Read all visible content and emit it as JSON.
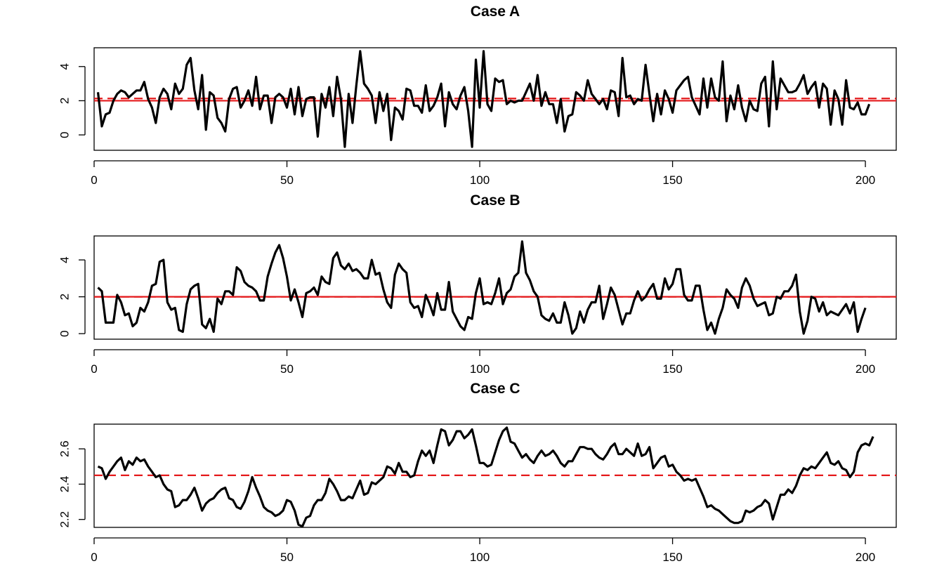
{
  "chart_data": [
    {
      "type": "line",
      "title": "Case A",
      "xlabel": "",
      "ylabel": "",
      "xlim": [
        0,
        208
      ],
      "ylim": [
        -0.9,
        5.1
      ],
      "x_ticks": [
        0,
        50,
        100,
        150,
        200
      ],
      "y_ticks": [
        0,
        2,
        4
      ],
      "y_tick_labels": [
        "0",
        "2",
        "4"
      ],
      "grid": false,
      "ref_lines": [
        {
          "style": "solid",
          "color": "#e41a1c",
          "y": 2.0
        },
        {
          "style": "dashed",
          "color": "#e41a1c",
          "y": 2.13
        }
      ],
      "x_start": 1,
      "values": [
        2.5,
        0.5,
        1.2,
        1.3,
        2.0,
        2.4,
        2.6,
        2.5,
        2.2,
        2.4,
        2.6,
        2.6,
        3.1,
        2.1,
        1.6,
        0.7,
        2.2,
        2.7,
        2.4,
        1.5,
        3.0,
        2.4,
        2.7,
        4.1,
        4.5,
        2.6,
        1.5,
        3.5,
        0.3,
        2.5,
        2.3,
        1.0,
        0.7,
        0.2,
        2.1,
        2.7,
        2.8,
        1.6,
        2.0,
        2.6,
        1.7,
        3.4,
        1.5,
        2.3,
        2.3,
        0.7,
        2.2,
        2.4,
        2.2,
        1.6,
        2.7,
        1.2,
        2.8,
        1.1,
        2.1,
        2.2,
        2.2,
        -0.1,
        2.4,
        1.6,
        2.8,
        1.1,
        3.4,
        2.1,
        -0.7,
        2.4,
        0.7,
        2.9,
        4.9,
        3.0,
        2.7,
        2.3,
        0.7,
        2.5,
        1.4,
        2.4,
        -0.3,
        1.6,
        1.4,
        0.9,
        2.7,
        2.6,
        1.7,
        1.7,
        1.3,
        2.9,
        1.4,
        1.7,
        2.2,
        3.0,
        0.5,
        2.5,
        1.8,
        1.5,
        2.3,
        2.8,
        1.4,
        -0.7,
        4.4,
        1.6,
        4.9,
        1.8,
        1.4,
        3.3,
        3.1,
        3.2,
        1.8,
        2.0,
        1.9,
        2.0,
        2.0,
        2.5,
        3.0,
        2.0,
        3.5,
        1.7,
        2.5,
        1.8,
        1.8,
        0.7,
        2.1,
        0.2,
        1.1,
        1.2,
        2.5,
        2.3,
        2.0,
        3.2,
        2.4,
        2.1,
        1.8,
        2.1,
        1.5,
        2.6,
        2.5,
        1.1,
        4.5,
        2.2,
        2.3,
        1.8,
        2.1,
        2.0,
        4.1,
        2.4,
        0.8,
        2.4,
        1.2,
        2.6,
        2.1,
        1.3,
        2.6,
        2.9,
        3.2,
        3.4,
        2.2,
        1.7,
        1.2,
        3.3,
        1.6,
        3.3,
        2.2,
        2.0,
        4.3,
        0.8,
        2.3,
        1.5,
        2.9,
        1.6,
        0.8,
        2.0,
        1.5,
        1.4,
        3.0,
        3.4,
        0.5,
        4.3,
        1.5,
        3.3,
        2.9,
        2.5,
        2.5,
        2.6,
        3.0,
        3.5,
        2.4,
        2.8,
        3.1,
        1.6,
        3.0,
        2.7,
        0.6,
        2.6,
        2.1,
        0.6,
        3.2,
        1.6,
        1.5,
        1.9,
        1.2,
        1.2,
        1.8
      ]
    },
    {
      "type": "line",
      "title": "Case B",
      "xlabel": "",
      "ylabel": "",
      "xlim": [
        0,
        208
      ],
      "ylim": [
        -0.3,
        5.3
      ],
      "x_ticks": [
        0,
        50,
        100,
        150,
        200
      ],
      "y_ticks": [
        0,
        2,
        4
      ],
      "y_tick_labels": [
        "0",
        "2",
        "4"
      ],
      "grid": false,
      "ref_lines": [
        {
          "style": "solid",
          "color": "#e41a1c",
          "y": 2.0
        },
        {
          "style": "dashed",
          "color": "#e41a1c",
          "y": 2.0
        }
      ],
      "x_start": 1,
      "values": [
        2.5,
        2.3,
        0.6,
        0.6,
        0.6,
        2.1,
        1.7,
        1.0,
        1.1,
        0.4,
        0.6,
        1.4,
        1.2,
        1.7,
        2.6,
        2.7,
        3.9,
        4.0,
        1.7,
        1.3,
        1.4,
        0.2,
        0.1,
        1.6,
        2.4,
        2.6,
        2.7,
        0.5,
        0.3,
        0.8,
        0.1,
        1.9,
        1.6,
        2.3,
        2.3,
        2.1,
        3.6,
        3.4,
        2.8,
        2.6,
        2.5,
        2.3,
        1.8,
        1.8,
        3.1,
        3.8,
        4.4,
        4.8,
        4.1,
        3.1,
        1.8,
        2.4,
        1.7,
        0.9,
        2.2,
        2.3,
        2.5,
        2.1,
        3.1,
        2.8,
        2.7,
        4.1,
        4.4,
        3.7,
        3.5,
        3.8,
        3.4,
        3.5,
        3.3,
        3.0,
        3.0,
        4.0,
        3.2,
        3.3,
        2.4,
        1.7,
        1.4,
        3.2,
        3.8,
        3.5,
        3.3,
        1.7,
        1.4,
        1.5,
        0.9,
        2.1,
        1.6,
        1.0,
        2.2,
        1.3,
        1.3,
        2.8,
        1.2,
        0.8,
        0.4,
        0.2,
        0.9,
        0.8,
        2.2,
        3.0,
        1.6,
        1.7,
        1.6,
        2.2,
        3.0,
        1.6,
        2.2,
        2.4,
        3.1,
        3.3,
        5.0,
        3.3,
        2.9,
        2.3,
        2.0,
        1.0,
        0.8,
        0.7,
        1.1,
        0.6,
        0.6,
        1.7,
        1.0,
        0.0,
        0.3,
        1.2,
        0.6,
        1.3,
        1.7,
        1.7,
        2.6,
        0.8,
        1.6,
        2.5,
        2.1,
        1.3,
        0.5,
        1.1,
        1.1,
        1.8,
        2.3,
        1.8,
        2.0,
        2.4,
        2.7,
        1.9,
        1.9,
        3.0,
        2.4,
        2.7,
        3.5,
        3.5,
        2.1,
        1.8,
        1.8,
        2.6,
        2.6,
        1.3,
        0.2,
        0.6,
        0.0,
        0.8,
        1.4,
        2.4,
        2.1,
        1.9,
        1.4,
        2.5,
        3.0,
        2.6,
        1.9,
        1.5,
        1.6,
        1.7,
        1.0,
        1.1,
        2.0,
        1.9,
        2.3,
        2.3,
        2.6,
        3.2,
        1.2,
        0.0,
        0.7,
        2.0,
        1.9,
        1.2,
        1.7,
        1.0,
        1.2,
        1.1,
        1.0,
        1.3,
        1.6,
        1.1,
        1.7,
        0.1,
        0.8,
        1.4
      ]
    },
    {
      "type": "line",
      "title": "Case C",
      "xlabel": "",
      "ylabel": "",
      "xlim": [
        0,
        208
      ],
      "ylim": [
        2.155,
        2.74
      ],
      "x_ticks": [
        0,
        50,
        100,
        150,
        200
      ],
      "y_ticks": [
        2.2,
        2.4,
        2.6
      ],
      "y_tick_labels": [
        "2.2",
        "2.4",
        "2.6"
      ],
      "grid": false,
      "ref_lines": [
        {
          "style": "dashed",
          "color": "#e41a1c",
          "y": 2.45
        }
      ],
      "x_start": 1,
      "values": [
        2.5,
        2.49,
        2.43,
        2.47,
        2.5,
        2.53,
        2.55,
        2.48,
        2.53,
        2.51,
        2.55,
        2.53,
        2.54,
        2.5,
        2.47,
        2.44,
        2.45,
        2.4,
        2.37,
        2.36,
        2.27,
        2.28,
        2.31,
        2.31,
        2.34,
        2.38,
        2.32,
        2.25,
        2.29,
        2.31,
        2.32,
        2.35,
        2.37,
        2.38,
        2.32,
        2.31,
        2.27,
        2.26,
        2.3,
        2.36,
        2.44,
        2.38,
        2.33,
        2.27,
        2.25,
        2.24,
        2.22,
        2.23,
        2.25,
        2.31,
        2.3,
        2.25,
        2.17,
        2.16,
        2.21,
        2.22,
        2.28,
        2.31,
        2.31,
        2.35,
        2.43,
        2.4,
        2.36,
        2.31,
        2.31,
        2.33,
        2.32,
        2.37,
        2.42,
        2.34,
        2.35,
        2.41,
        2.4,
        2.42,
        2.44,
        2.5,
        2.49,
        2.46,
        2.52,
        2.47,
        2.47,
        2.44,
        2.45,
        2.53,
        2.59,
        2.56,
        2.59,
        2.52,
        2.62,
        2.71,
        2.7,
        2.62,
        2.65,
        2.7,
        2.7,
        2.66,
        2.68,
        2.71,
        2.62,
        2.52,
        2.52,
        2.5,
        2.51,
        2.58,
        2.65,
        2.7,
        2.72,
        2.64,
        2.63,
        2.59,
        2.55,
        2.57,
        2.54,
        2.52,
        2.56,
        2.59,
        2.56,
        2.57,
        2.59,
        2.56,
        2.52,
        2.5,
        2.53,
        2.53,
        2.57,
        2.61,
        2.61,
        2.6,
        2.6,
        2.57,
        2.55,
        2.54,
        2.57,
        2.61,
        2.63,
        2.57,
        2.57,
        2.6,
        2.58,
        2.56,
        2.63,
        2.56,
        2.57,
        2.61,
        2.49,
        2.52,
        2.55,
        2.56,
        2.5,
        2.51,
        2.47,
        2.45,
        2.42,
        2.43,
        2.42,
        2.43,
        2.38,
        2.33,
        2.27,
        2.28,
        2.26,
        2.25,
        2.23,
        2.21,
        2.19,
        2.18,
        2.18,
        2.19,
        2.25,
        2.24,
        2.25,
        2.27,
        2.28,
        2.31,
        2.29,
        2.2,
        2.27,
        2.34,
        2.34,
        2.37,
        2.35,
        2.39,
        2.45,
        2.49,
        2.48,
        2.5,
        2.49,
        2.52,
        2.55,
        2.58,
        2.52,
        2.51,
        2.53,
        2.49,
        2.48,
        2.44,
        2.47,
        2.58,
        2.62,
        2.63,
        2.62,
        2.67
      ]
    }
  ]
}
